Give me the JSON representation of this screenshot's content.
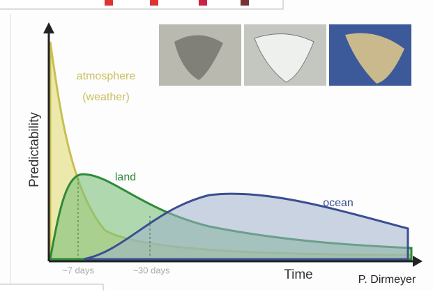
{
  "axes": {
    "y_label": "Predictability",
    "x_label": "Time"
  },
  "curves": {
    "atmosphere": [
      "atmosphere",
      "(weather)"
    ],
    "land": "land",
    "ocean": "ocean"
  },
  "markers": [
    "~7 days",
    "~30 days"
  ],
  "credit": "P. Dirmeyer"
}
